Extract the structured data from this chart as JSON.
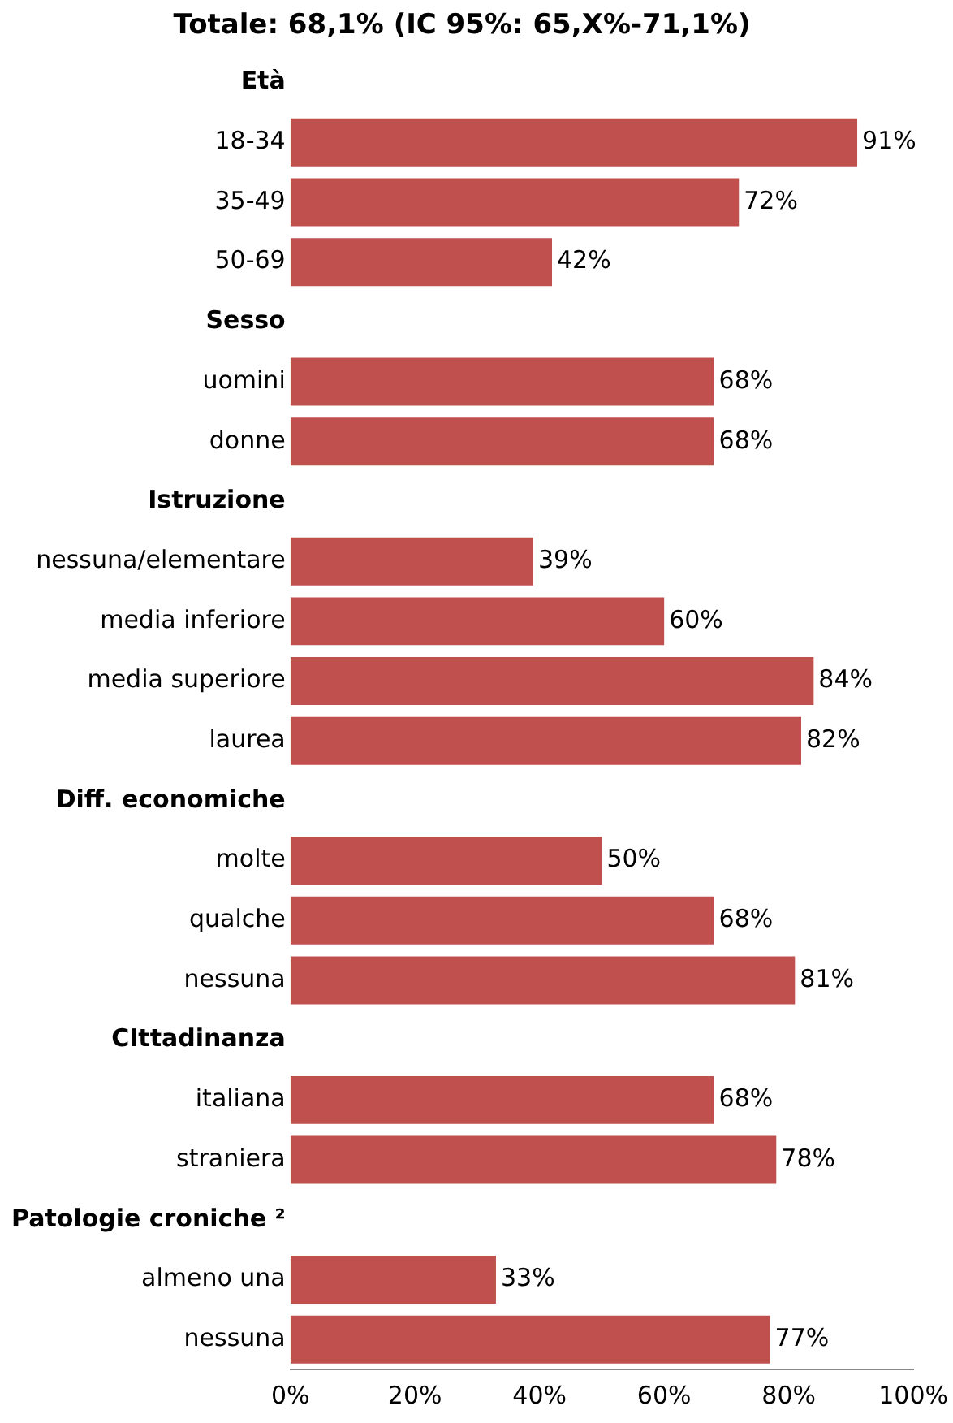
{
  "chart_data": {
    "type": "bar",
    "orientation": "horizontal",
    "title": "Totale: 68,1% (IC 95%: 65,X%-71,1%)",
    "categories": [
      "Età",
      "18-34",
      "35-49",
      "50-69",
      "Sesso",
      "uomini",
      "donne",
      "Istruzione",
      "nessuna/elementare",
      "media inferiore",
      "media superiore",
      "laurea",
      "Diff. economiche",
      "molte",
      "qualche",
      "nessuna",
      "CIttadinanza",
      "italiana",
      "straniera",
      "Patologie croniche ²",
      "almeno una",
      "nessuna"
    ],
    "values": [
      null,
      91,
      72,
      42,
      null,
      68,
      68,
      null,
      39,
      60,
      84,
      82,
      null,
      50,
      68,
      81,
      null,
      68,
      78,
      null,
      33,
      77
    ],
    "value_labels": [
      null,
      "91%",
      "72%",
      "42%",
      null,
      "68%",
      "68%",
      null,
      "39%",
      "60%",
      "84%",
      "82%",
      null,
      "50%",
      "68%",
      "81%",
      null,
      "68%",
      "78%",
      null,
      "33%",
      "77%"
    ],
    "color": "#c0504d",
    "xlim": [
      0,
      100
    ],
    "xticks": [
      {
        "value": 0,
        "label": "0%"
      },
      {
        "value": 20,
        "label": "20%"
      },
      {
        "value": 40,
        "label": "40%"
      },
      {
        "value": 60,
        "label": "60%"
      },
      {
        "value": 80,
        "label": "80%"
      },
      {
        "value": 100,
        "label": "100%"
      }
    ],
    "grid": false,
    "legend": false
  }
}
